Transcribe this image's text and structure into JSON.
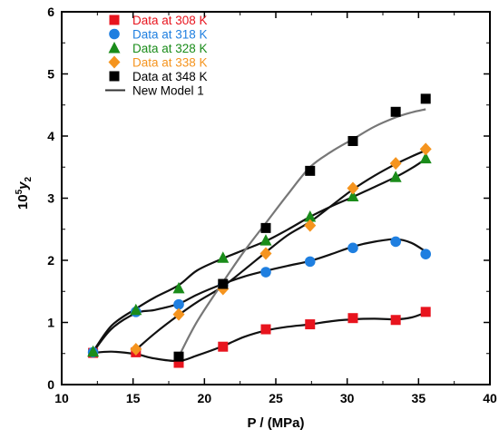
{
  "chart_data": {
    "type": "scatter",
    "title": "",
    "xlabel": "P / (MPa)",
    "ylabel_base": "10",
    "ylabel_exp": "5",
    "ylabel_var": "y",
    "ylabel_sub": "2",
    "xlim": [
      10,
      40
    ],
    "ylim": [
      0,
      6
    ],
    "xticks": [
      10,
      15,
      20,
      25,
      30,
      35,
      40
    ],
    "yticks": [
      0,
      1,
      2,
      3,
      4,
      5,
      6
    ],
    "grid": false,
    "legend_position": "top-left",
    "series": [
      {
        "name": "Data at 308 K",
        "marker": "square",
        "color": "#e8141e",
        "x": [
          12.2,
          15.2,
          18.2,
          21.3,
          24.3,
          27.4,
          30.4,
          33.4,
          35.5
        ],
        "y": [
          0.51,
          0.52,
          0.35,
          0.61,
          0.89,
          0.97,
          1.07,
          1.04,
          1.17
        ]
      },
      {
        "name": "Data at 318 K",
        "marker": "circle",
        "color": "#1f7fe0",
        "x": [
          12.2,
          15.2,
          18.2,
          21.3,
          24.3,
          27.4,
          30.4,
          33.4,
          35.5
        ],
        "y": [
          0.52,
          1.17,
          1.29,
          1.6,
          1.81,
          1.98,
          2.2,
          2.3,
          2.1
        ]
      },
      {
        "name": "Data at 328 K",
        "marker": "triangle",
        "color": "#1a8c1a",
        "x": [
          12.2,
          15.2,
          18.2,
          21.3,
          24.3,
          27.4,
          30.4,
          33.4,
          35.5
        ],
        "y": [
          0.53,
          1.2,
          1.55,
          2.04,
          2.32,
          2.7,
          3.03,
          3.34,
          3.64
        ]
      },
      {
        "name": "Data at 338 K",
        "marker": "diamond",
        "color": "#f5941e",
        "x": [
          15.2,
          18.2,
          21.3,
          24.3,
          27.4,
          30.4,
          33.4,
          35.5
        ],
        "y": [
          0.57,
          1.13,
          1.54,
          2.11,
          2.56,
          3.16,
          3.56,
          3.79
        ]
      },
      {
        "name": "Data at 348 K",
        "marker": "square",
        "color": "#000000",
        "x": [
          18.2,
          21.3,
          24.3,
          27.4,
          30.4,
          33.4,
          35.5
        ],
        "y": [
          0.45,
          1.62,
          2.52,
          3.44,
          3.92,
          4.39,
          4.6
        ]
      }
    ],
    "model": {
      "name": "New Model 1",
      "curves": [
        {
          "color": "#111111",
          "x": [
            12.2,
            13.5,
            15.2,
            16.5,
            18.2,
            19.5,
            21.3,
            22.8,
            24.3,
            25.8,
            27.4,
            28.9,
            30.4,
            31.9,
            33.4,
            34.5,
            35.5
          ],
          "y": [
            0.51,
            0.53,
            0.49,
            0.42,
            0.38,
            0.47,
            0.62,
            0.77,
            0.87,
            0.93,
            0.97,
            1.02,
            1.05,
            1.06,
            1.05,
            1.08,
            1.16
          ]
        },
        {
          "color": "#111111",
          "x": [
            12.2,
            13.5,
            15.2,
            16.5,
            18.2,
            19.5,
            21.3,
            22.8,
            24.3,
            25.8,
            27.4,
            28.9,
            30.4,
            31.9,
            33.4,
            34.5,
            35.5
          ],
          "y": [
            0.52,
            0.9,
            1.15,
            1.2,
            1.3,
            1.45,
            1.62,
            1.74,
            1.83,
            1.91,
            1.99,
            2.1,
            2.22,
            2.3,
            2.34,
            2.28,
            2.14
          ]
        },
        {
          "color": "#111111",
          "x": [
            12.2,
            13.5,
            15.2,
            16.5,
            18.2,
            19.5,
            21.3,
            22.8,
            24.3,
            25.8,
            27.4,
            28.9,
            30.4,
            31.9,
            33.4,
            34.5,
            35.5
          ],
          "y": [
            0.53,
            0.95,
            1.22,
            1.4,
            1.6,
            1.84,
            2.03,
            2.17,
            2.31,
            2.49,
            2.7,
            2.87,
            3.02,
            3.18,
            3.34,
            3.48,
            3.63
          ]
        },
        {
          "color": "#111111",
          "x": [
            15.2,
            16.5,
            18.2,
            19.5,
            21.3,
            22.8,
            24.3,
            25.8,
            27.4,
            28.9,
            30.4,
            31.9,
            33.4,
            34.5,
            35.5
          ],
          "y": [
            0.56,
            0.82,
            1.12,
            1.33,
            1.58,
            1.85,
            2.13,
            2.4,
            2.62,
            2.88,
            3.14,
            3.36,
            3.55,
            3.67,
            3.77
          ]
        },
        {
          "color": "#777777",
          "x": [
            18.2,
            19.5,
            21.3,
            22.8,
            24.3,
            25.8,
            27.4,
            28.9,
            30.4,
            31.9,
            33.4,
            34.5,
            35.5
          ],
          "y": [
            0.45,
            1.02,
            1.65,
            2.15,
            2.6,
            3.05,
            3.5,
            3.75,
            3.95,
            4.15,
            4.3,
            4.38,
            4.43
          ]
        }
      ]
    }
  }
}
